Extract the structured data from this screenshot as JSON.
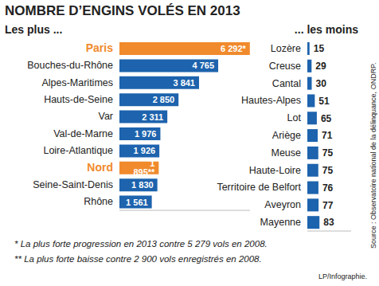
{
  "title": "NOMBRE D’ENGINS VOLÉS EN 2013",
  "notes": [
    "* La plus forte progression en 2013 contre 5 279 vols en 2008.",
    "** La plus forte baisse contre 2 900 vols enregistrés en 2008."
  ],
  "source": "Source : Observatoire national de la délinquance, ONDRP.",
  "credit": "LP/Infographie.",
  "chart_data": [
    {
      "type": "bar",
      "orientation": "horizontal",
      "title": "Les plus ...",
      "categories": [
        "Paris",
        "Bouches-du-Rhône",
        "Alpes-Maritimes",
        "Hauts-de-Seine",
        "Var",
        "Val-de-Marne",
        "Loire-Atlantique",
        "Nord",
        "Seine-Saint-Denis",
        "Rhône"
      ],
      "values": [
        6292,
        4765,
        3841,
        2850,
        2311,
        1976,
        1926,
        1895,
        1830,
        1561
      ],
      "value_labels": [
        "6 292*",
        "4 765",
        "3 841",
        "2 850",
        "2 311",
        "1 976",
        "1 926",
        "1 895**",
        "1 830",
        "1 561"
      ],
      "colors": [
        "#f08a2c",
        "#1d63ad",
        "#1d63ad",
        "#1d63ad",
        "#1d63ad",
        "#1d63ad",
        "#1d63ad",
        "#f08a2c",
        "#1d63ad",
        "#1d63ad"
      ],
      "xlim": [
        0,
        6300
      ],
      "data_labels": true,
      "tick_labels": "y"
    },
    {
      "type": "bar",
      "orientation": "horizontal",
      "title": "... les moins",
      "categories": [
        "Lozère",
        "Creuse",
        "Cantal",
        "Hautes-Alpes",
        "Lot",
        "Ariège",
        "Meuse",
        "Haute-Loire",
        "Territoire de Belfort",
        "Aveyron",
        "Mayenne"
      ],
      "values": [
        15,
        29,
        30,
        51,
        65,
        71,
        75,
        75,
        76,
        77,
        83
      ],
      "colors": [
        "#1d63ad",
        "#1d63ad",
        "#1d63ad",
        "#1d63ad",
        "#1d63ad",
        "#1d63ad",
        "#1d63ad",
        "#1d63ad",
        "#1d63ad",
        "#1d63ad",
        "#1d63ad"
      ],
      "xlim": [
        0,
        300
      ],
      "data_labels": true,
      "tick_labels": "y"
    }
  ]
}
